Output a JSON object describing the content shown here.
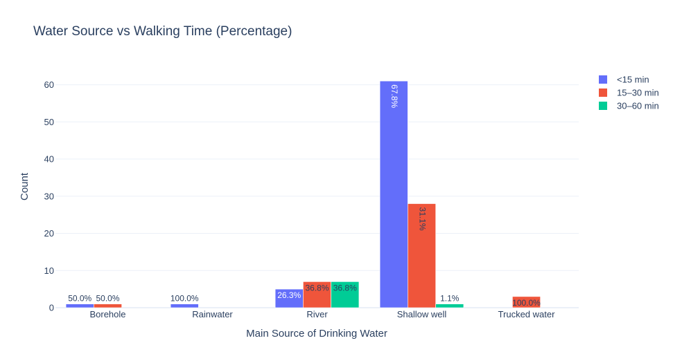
{
  "chart_data": {
    "type": "bar",
    "title": "Water Source vs Walking Time (Percentage)",
    "xlabel": "Main Source of Drinking Water",
    "ylabel": "Count",
    "ylim": [
      0,
      64.2
    ],
    "yticks": [
      0,
      10,
      20,
      30,
      40,
      50,
      60
    ],
    "grid": true,
    "legend_position": "top-right",
    "categories": [
      "Borehole",
      "Rainwater",
      "River",
      "Shallow well",
      "Trucked water"
    ],
    "series": [
      {
        "name": "<15 min",
        "color": "#636efa",
        "values": [
          1,
          1,
          5,
          61,
          0
        ],
        "labels": [
          "50.0%",
          "100.0%",
          "26.3%",
          "67.8%",
          ""
        ]
      },
      {
        "name": "15–30 min",
        "color": "#ef553b",
        "values": [
          1,
          0,
          7,
          28,
          3
        ],
        "labels": [
          "50.0%",
          "",
          "36.8%",
          "31.1%",
          "100.0%"
        ]
      },
      {
        "name": "30–60 min",
        "color": "#00cc96",
        "values": [
          0,
          0,
          7,
          1,
          0
        ],
        "labels": [
          "",
          "",
          "36.8%",
          "1.1%",
          ""
        ]
      }
    ]
  }
}
